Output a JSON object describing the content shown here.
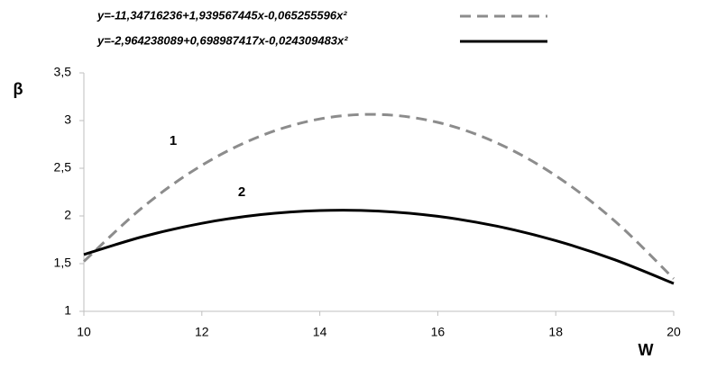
{
  "chart_data": {
    "type": "line",
    "x_label": "W",
    "y_label": "β",
    "annotations": [
      "1",
      "2"
    ],
    "x": [
      10,
      11,
      12,
      13,
      14,
      15,
      16,
      17,
      18,
      19,
      20
    ],
    "series": [
      {
        "name": "y=-11,34716236+1,939567445x-0,065255596x²",
        "color": "#8c8c8c",
        "style": "dashed",
        "values": [
          1.523,
          2.092,
          2.531,
          2.839,
          3.017,
          3.064,
          2.981,
          2.767,
          2.422,
          1.947,
          1.342
        ]
      },
      {
        "name": "y=-2,964238089+0,698987417x-0,024309483x²",
        "color": "#000000",
        "style": "solid",
        "values": [
          1.595,
          1.783,
          1.923,
          2.014,
          2.057,
          2.051,
          1.996,
          1.893,
          1.741,
          1.541,
          1.292
        ]
      }
    ],
    "xlim": [
      10,
      20
    ],
    "xticks": [
      10,
      12,
      14,
      16,
      18,
      20
    ],
    "ylim": [
      1,
      3.5
    ],
    "yticks": [
      1,
      {
        "value": 1.5,
        "label": "1,5"
      },
      2,
      {
        "value": 2.5,
        "label": "2,5"
      },
      3,
      {
        "value": 3.5,
        "label": "3,5"
      }
    ],
    "grid": false,
    "legend_position": "top"
  }
}
